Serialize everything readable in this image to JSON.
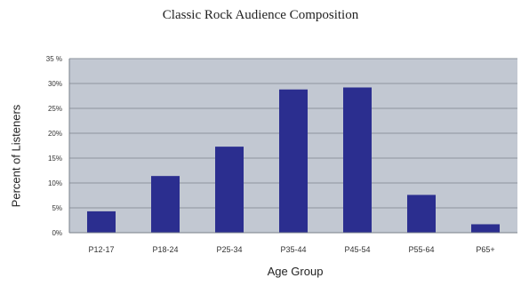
{
  "chart_data": {
    "type": "bar",
    "title": "Classic Rock Audience Composition",
    "xlabel": "Age Group",
    "ylabel": "Percent of Listeners",
    "categories": [
      "P12-17",
      "P18-24",
      "P25-34",
      "P35-44",
      "P45-54",
      "P55-64",
      "P65+"
    ],
    "values": [
      4.3,
      11.4,
      17.3,
      28.8,
      29.2,
      7.6,
      1.7
    ],
    "ylim": [
      0,
      35
    ],
    "yticks": [
      0,
      5,
      10,
      15,
      20,
      25,
      30,
      35
    ],
    "ytick_labels": [
      "0%",
      "5%",
      "10%",
      "15%",
      "20%",
      "25%",
      "30%",
      "35 %"
    ],
    "grid": true,
    "colors": {
      "bar": "#2b2e8f",
      "plot_background": "#c2c8d2",
      "gridline": "#8e949e"
    }
  }
}
